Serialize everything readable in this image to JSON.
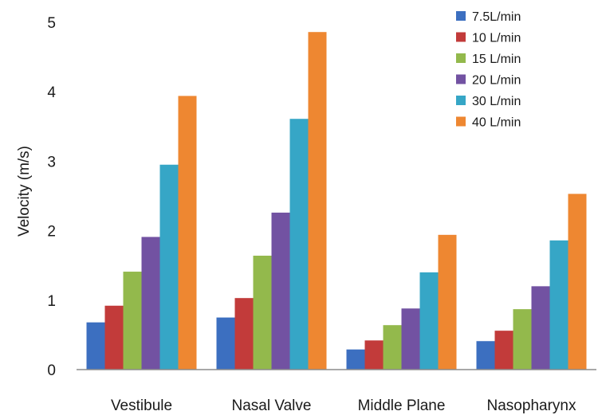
{
  "chart_data": {
    "type": "bar",
    "title": "",
    "xlabel": "",
    "ylabel": "Velocity (m/s)",
    "ylim": [
      0,
      5
    ],
    "yticks": [
      0,
      1,
      2,
      3,
      4,
      5
    ],
    "grid": false,
    "legend_position": "top-right",
    "categories": [
      "Vestibule",
      "Nasal Valve",
      "Middle Plane",
      "Nasopharynx"
    ],
    "series": [
      {
        "name": "7.5L/min",
        "color": "#3c6fc0",
        "values": [
          0.68,
          0.75,
          0.29,
          0.41
        ]
      },
      {
        "name": "10 L/min",
        "color": "#c23b3a",
        "values": [
          0.92,
          1.03,
          0.42,
          0.56
        ]
      },
      {
        "name": "15 L/min",
        "color": "#93b94c",
        "values": [
          1.41,
          1.64,
          0.64,
          0.87
        ]
      },
      {
        "name": "20 L/min",
        "color": "#7252a2",
        "values": [
          1.91,
          2.26,
          0.88,
          1.2
        ]
      },
      {
        "name": "30 L/min",
        "color": "#36a6c6",
        "values": [
          2.95,
          3.61,
          1.4,
          1.86
        ]
      },
      {
        "name": "40 L/min",
        "color": "#ee8731",
        "values": [
          3.94,
          4.86,
          1.94,
          2.53
        ]
      }
    ]
  }
}
